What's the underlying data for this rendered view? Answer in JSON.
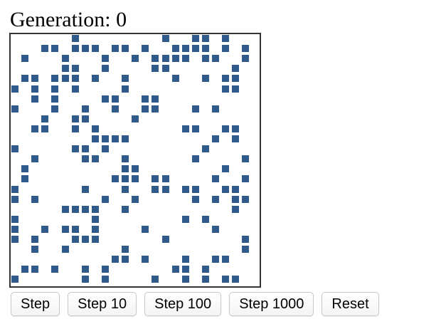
{
  "header": {
    "title": "Generation: 0"
  },
  "board": {
    "columns": 25,
    "rows": 25,
    "cell_color": "#2f5a8a",
    "border_color": "#333333",
    "live_cells": [
      [
        0,
        6
      ],
      [
        0,
        15
      ],
      [
        0,
        18
      ],
      [
        0,
        19
      ],
      [
        0,
        21
      ],
      [
        1,
        3
      ],
      [
        1,
        4
      ],
      [
        1,
        6
      ],
      [
        1,
        7
      ],
      [
        1,
        8
      ],
      [
        1,
        10
      ],
      [
        1,
        11
      ],
      [
        1,
        13
      ],
      [
        1,
        16
      ],
      [
        1,
        17
      ],
      [
        1,
        18
      ],
      [
        1,
        19
      ],
      [
        1,
        21
      ],
      [
        1,
        23
      ],
      [
        2,
        1
      ],
      [
        2,
        5
      ],
      [
        2,
        9
      ],
      [
        2,
        12
      ],
      [
        2,
        14
      ],
      [
        2,
        15
      ],
      [
        2,
        16
      ],
      [
        2,
        17
      ],
      [
        2,
        19
      ],
      [
        2,
        20
      ],
      [
        2,
        23
      ],
      [
        3,
        5
      ],
      [
        3,
        6
      ],
      [
        3,
        9
      ],
      [
        3,
        14
      ],
      [
        3,
        15
      ],
      [
        3,
        22
      ],
      [
        4,
        1
      ],
      [
        4,
        2
      ],
      [
        4,
        4
      ],
      [
        4,
        5
      ],
      [
        4,
        6
      ],
      [
        4,
        8
      ],
      [
        4,
        11
      ],
      [
        4,
        16
      ],
      [
        4,
        19
      ],
      [
        4,
        21
      ],
      [
        4,
        22
      ],
      [
        5,
        0
      ],
      [
        5,
        2
      ],
      [
        5,
        4
      ],
      [
        5,
        6
      ],
      [
        5,
        11
      ],
      [
        5,
        21
      ],
      [
        5,
        22
      ],
      [
        6,
        2
      ],
      [
        6,
        4
      ],
      [
        6,
        9
      ],
      [
        6,
        10
      ],
      [
        6,
        13
      ],
      [
        6,
        14
      ],
      [
        7,
        0
      ],
      [
        7,
        4
      ],
      [
        7,
        7
      ],
      [
        7,
        10
      ],
      [
        7,
        13
      ],
      [
        7,
        14
      ],
      [
        7,
        18
      ],
      [
        7,
        20
      ],
      [
        8,
        3
      ],
      [
        8,
        6
      ],
      [
        8,
        7
      ],
      [
        8,
        12
      ],
      [
        9,
        2
      ],
      [
        9,
        3
      ],
      [
        9,
        6
      ],
      [
        9,
        8
      ],
      [
        9,
        17
      ],
      [
        9,
        18
      ],
      [
        9,
        21
      ],
      [
        9,
        22
      ],
      [
        10,
        8
      ],
      [
        10,
        9
      ],
      [
        10,
        10
      ],
      [
        10,
        11
      ],
      [
        10,
        20
      ],
      [
        10,
        22
      ],
      [
        11,
        0
      ],
      [
        11,
        6
      ],
      [
        11,
        7
      ],
      [
        11,
        9
      ],
      [
        11,
        19
      ],
      [
        12,
        2
      ],
      [
        12,
        7
      ],
      [
        12,
        8
      ],
      [
        12,
        11
      ],
      [
        12,
        18
      ],
      [
        12,
        23
      ],
      [
        13,
        1
      ],
      [
        13,
        11
      ],
      [
        13,
        12
      ],
      [
        13,
        21
      ],
      [
        14,
        1
      ],
      [
        14,
        10
      ],
      [
        14,
        11
      ],
      [
        14,
        12
      ],
      [
        14,
        14
      ],
      [
        14,
        15
      ],
      [
        14,
        20
      ],
      [
        14,
        23
      ],
      [
        15,
        0
      ],
      [
        15,
        7
      ],
      [
        15,
        11
      ],
      [
        15,
        14
      ],
      [
        15,
        15
      ],
      [
        15,
        17
      ],
      [
        15,
        18
      ],
      [
        15,
        21
      ],
      [
        15,
        22
      ],
      [
        16,
        0
      ],
      [
        16,
        2
      ],
      [
        16,
        9
      ],
      [
        16,
        12
      ],
      [
        16,
        18
      ],
      [
        16,
        20
      ],
      [
        16,
        22
      ],
      [
        16,
        23
      ],
      [
        17,
        5
      ],
      [
        17,
        6
      ],
      [
        17,
        7
      ],
      [
        17,
        8
      ],
      [
        17,
        11
      ],
      [
        17,
        22
      ],
      [
        18,
        0
      ],
      [
        18,
        8
      ],
      [
        18,
        17
      ],
      [
        18,
        19
      ],
      [
        19,
        0
      ],
      [
        19,
        3
      ],
      [
        19,
        5
      ],
      [
        19,
        6
      ],
      [
        19,
        8
      ],
      [
        19,
        13
      ],
      [
        19,
        20
      ],
      [
        20,
        0
      ],
      [
        20,
        2
      ],
      [
        20,
        6
      ],
      [
        20,
        7
      ],
      [
        20,
        8
      ],
      [
        20,
        15
      ],
      [
        20,
        23
      ],
      [
        21,
        2
      ],
      [
        21,
        5
      ],
      [
        21,
        11
      ],
      [
        21,
        23
      ],
      [
        22,
        10
      ],
      [
        22,
        11
      ],
      [
        22,
        13
      ],
      [
        22,
        17
      ],
      [
        22,
        20
      ],
      [
        22,
        21
      ],
      [
        23,
        1
      ],
      [
        23,
        2
      ],
      [
        23,
        4
      ],
      [
        23,
        7
      ],
      [
        23,
        9
      ],
      [
        23,
        16
      ],
      [
        23,
        17
      ],
      [
        23,
        19
      ],
      [
        24,
        0
      ],
      [
        24,
        7
      ],
      [
        24,
        9
      ],
      [
        24,
        14
      ],
      [
        24,
        17
      ],
      [
        24,
        19
      ],
      [
        24,
        21
      ],
      [
        24,
        22
      ]
    ]
  },
  "controls": {
    "step_label": "Step",
    "step10_label": "Step 10",
    "step100_label": "Step 100",
    "step1000_label": "Step 1000",
    "reset_label": "Reset"
  }
}
